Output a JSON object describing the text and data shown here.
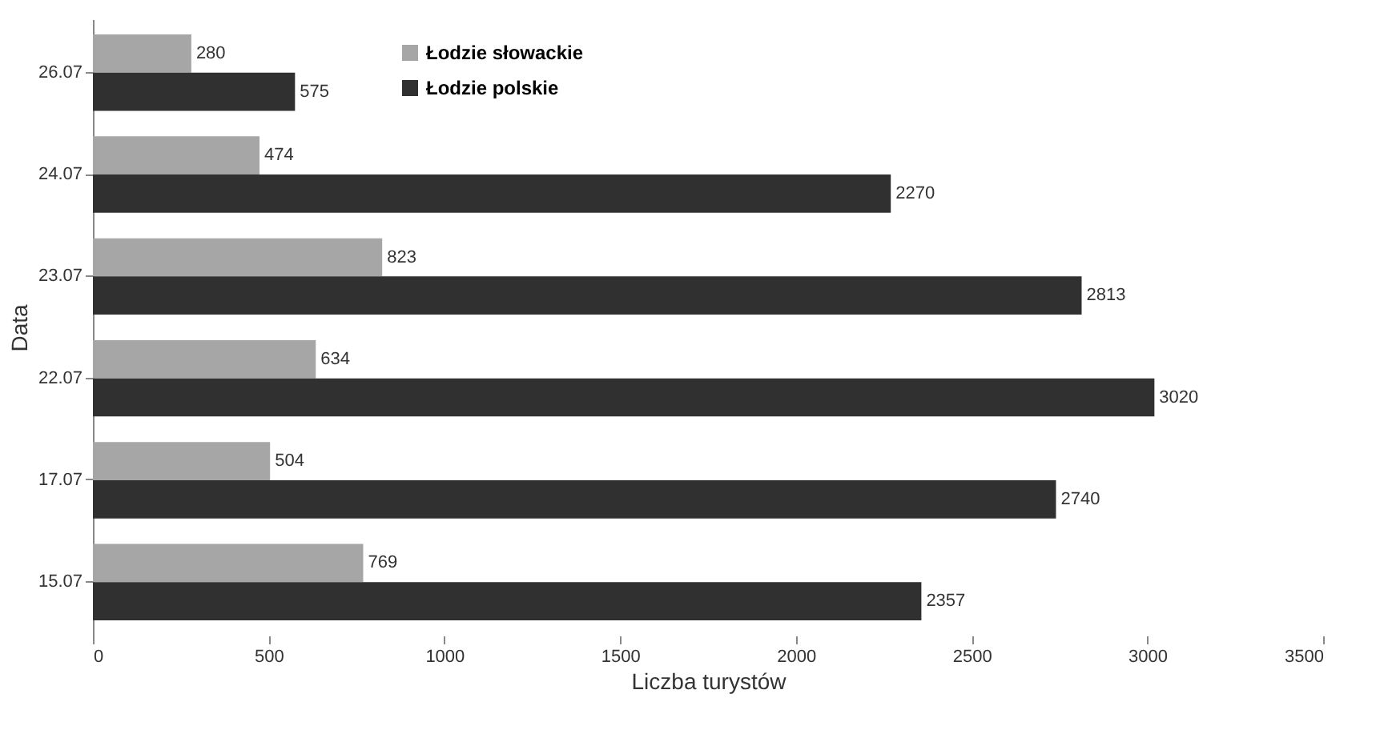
{
  "chart_data": {
    "type": "bar",
    "orientation": "horizontal",
    "xlabel": "Liczba turystów",
    "ylabel": "Data",
    "categories": [
      "26.07",
      "24.07",
      "23.07",
      "22.07",
      "17.07",
      "15.07"
    ],
    "series": [
      {
        "name": "Łodzie słowackie",
        "color": "#a6a6a6",
        "values": [
          280,
          474,
          823,
          634,
          504,
          769
        ]
      },
      {
        "name": "Łodzie polskie",
        "color": "#303030",
        "values": [
          575,
          2270,
          2813,
          3020,
          2740,
          2357
        ]
      }
    ],
    "xlim": [
      0,
      3500
    ],
    "xticks": [
      0,
      500,
      1000,
      1500,
      2000,
      2500,
      3000,
      3500
    ],
    "data_labels": true,
    "legend": "top",
    "grid": false
  }
}
